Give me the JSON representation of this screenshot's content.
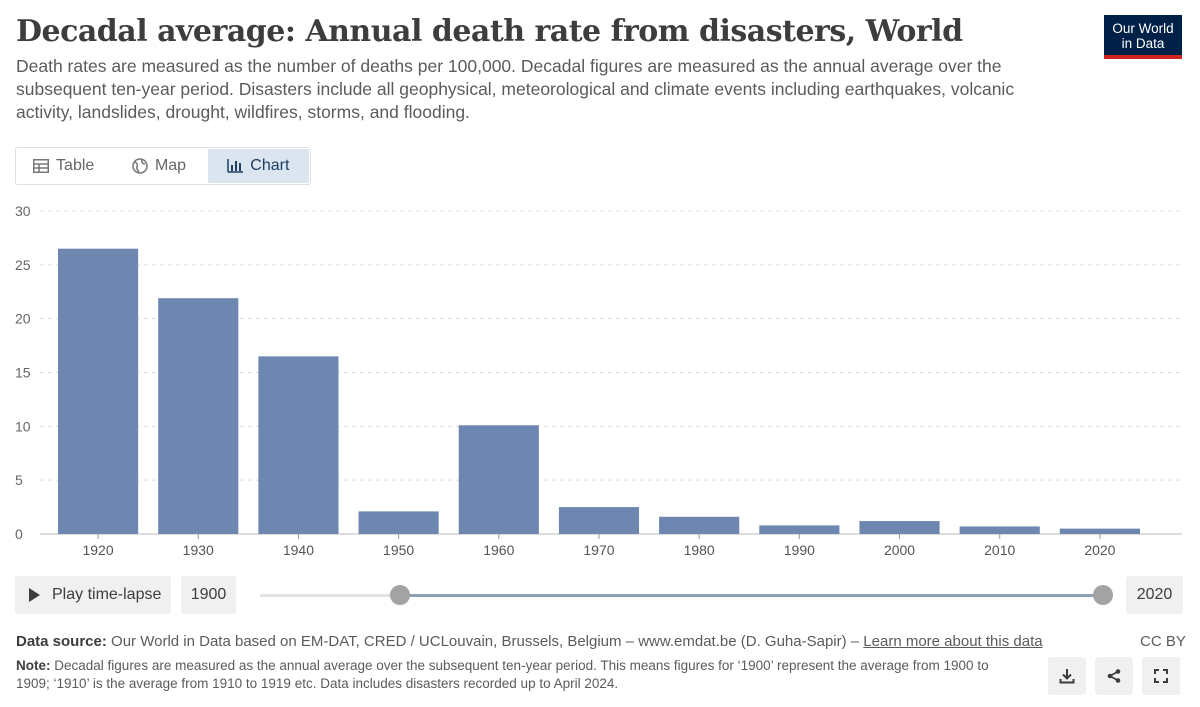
{
  "header": {
    "title": "Decadal average: Annual death rate from disasters, World",
    "subtitle": "Death rates are measured as the number of deaths per 100,000. Decadal figures are measured as the annual average over the subsequent ten-year period. Disasters include all geophysical, meteorological and climate events including earthquakes, volcanic activity, landslides, drought, wildfires, storms, and flooding."
  },
  "logo": {
    "line1": "Our World",
    "line2": "in Data"
  },
  "tabs": {
    "table": "Table",
    "map": "Map",
    "chart": "Chart"
  },
  "colors": {
    "bar": "#6d87b0",
    "grid": "#dddddd",
    "accent": "#002147",
    "logo_stripe": "#ce261e"
  },
  "chart_data": {
    "type": "bar",
    "title": "Decadal average: Annual death rate from disasters, World",
    "categories": [
      "1920",
      "1930",
      "1940",
      "1950",
      "1960",
      "1970",
      "1980",
      "1990",
      "2000",
      "2010",
      "2020"
    ],
    "values": [
      26.5,
      21.9,
      16.5,
      2.1,
      10.1,
      2.5,
      1.6,
      0.8,
      1.2,
      0.7,
      0.5
    ],
    "yticks": [
      0,
      5,
      10,
      15,
      20,
      25,
      30
    ],
    "ylim": [
      0,
      30
    ],
    "xlabel": "",
    "ylabel": "",
    "grid": true
  },
  "timeline": {
    "play_label": "Play time-lapse",
    "start_year": "1900",
    "end_year": "2020"
  },
  "footer": {
    "source_label": "Data source:",
    "source_text": "Our World in Data based on EM-DAT, CRED / UCLouvain, Brussels, Belgium – www.emdat.be (D. Guha-Sapir) –",
    "learn_more": "Learn more about this data",
    "license": "CC BY",
    "note_label": "Note:",
    "note_text": "Decadal figures are measured as the annual average over the subsequent ten-year period. This means figures for ‘1900’ represent the average from 1900 to 1909; ‘1910’ is the average from 1910 to 1919 etc. Data includes disasters recorded up to April 2024."
  },
  "icons": {
    "download": "download-icon",
    "share": "share-icon",
    "fullscreen": "fullscreen-icon"
  }
}
